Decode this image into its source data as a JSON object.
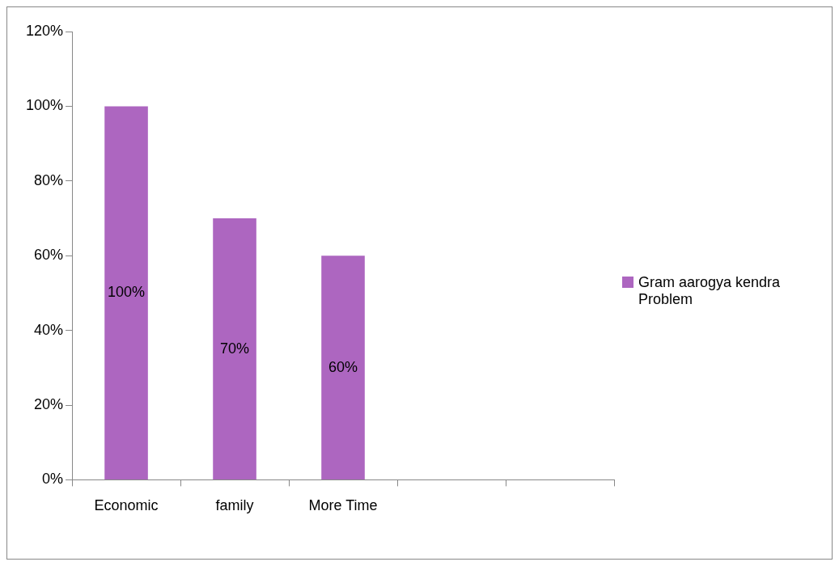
{
  "chart_data": {
    "type": "bar",
    "categories": [
      "Economic",
      "family",
      "More Time",
      null,
      null
    ],
    "series": [
      {
        "name": "Gram aarogya kendra Problem",
        "color": "#ad66c0",
        "values": [
          100,
          70,
          60,
          null,
          null
        ],
        "value_labels": [
          "100%",
          "70%",
          "60%",
          null,
          null
        ]
      }
    ],
    "ylim": [
      0,
      120
    ],
    "yticks": [
      {
        "value": 0,
        "label": "0%"
      },
      {
        "value": 20,
        "label": "20%"
      },
      {
        "value": 40,
        "label": "40%"
      },
      {
        "value": 60,
        "label": "60%"
      },
      {
        "value": 80,
        "label": "80%"
      },
      {
        "value": 100,
        "label": "100%"
      },
      {
        "value": 120,
        "label": "120%"
      }
    ],
    "grid": false,
    "legend": "right"
  }
}
